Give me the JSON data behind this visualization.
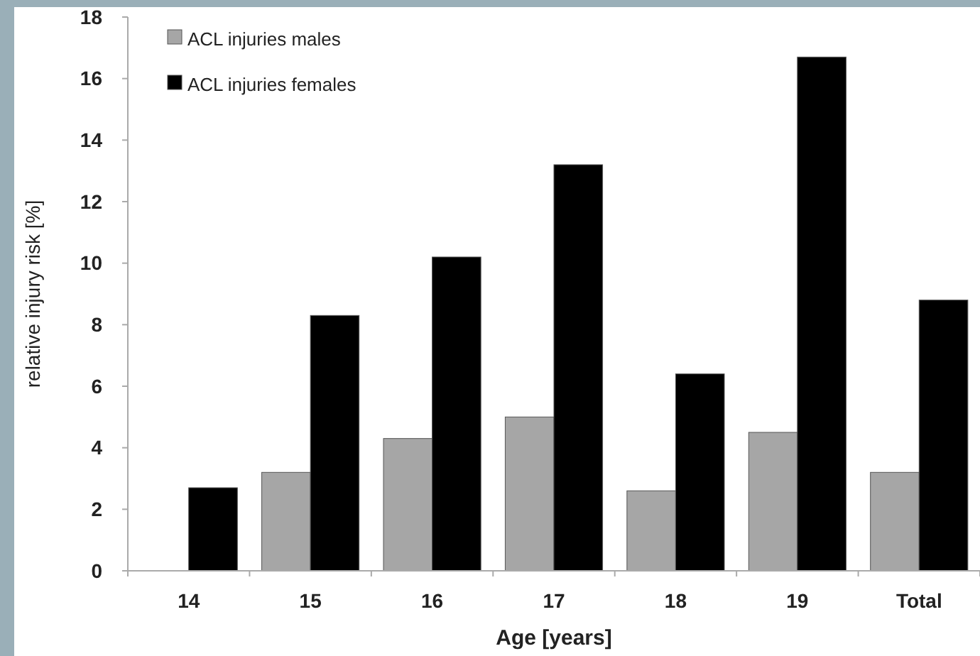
{
  "chart_data": {
    "type": "bar",
    "xlabel": "Age [years]",
    "ylabel": "relative injury risk [%]",
    "categories": [
      "14",
      "15",
      "16",
      "17",
      "18",
      "19",
      "Total"
    ],
    "series": [
      {
        "name": "ACL injuries males",
        "color": "#a6a6a6",
        "values": [
          0,
          3.2,
          4.3,
          5.0,
          2.6,
          4.5,
          3.2
        ]
      },
      {
        "name": "ACL injuries females",
        "color": "#000000",
        "values": [
          2.7,
          8.3,
          10.2,
          13.2,
          6.4,
          16.7,
          8.8
        ]
      }
    ],
    "ylim": [
      0,
      18
    ],
    "yticks": [
      0,
      2,
      4,
      6,
      8,
      10,
      12,
      14,
      16,
      18
    ],
    "grid": false,
    "legend": "top left"
  }
}
